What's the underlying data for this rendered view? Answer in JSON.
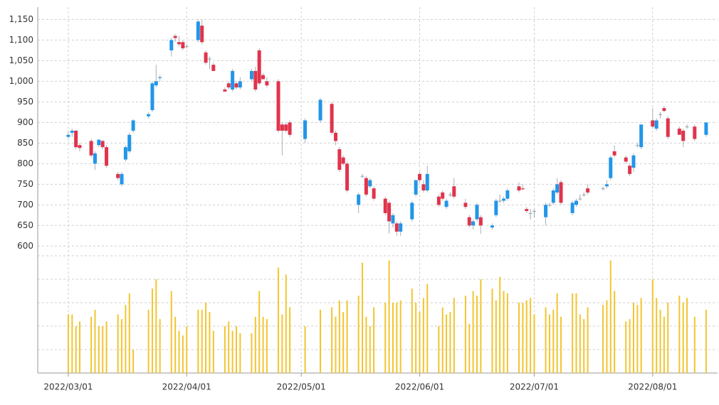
{
  "chart_data": {
    "type": "candlestick",
    "colors": {
      "up": "#2196e8",
      "down": "#e0344c",
      "flat": "#9aa3ad",
      "volume": "#f2c530"
    },
    "grid": true,
    "x": [
      "2022/03/01",
      "2022/03/02",
      "2022/03/03",
      "2022/03/04",
      "2022/03/07",
      "2022/03/08",
      "2022/03/09",
      "2022/03/10",
      "2022/03/11",
      "2022/03/14",
      "2022/03/15",
      "2022/03/16",
      "2022/03/17",
      "2022/03/18",
      "2022/03/22",
      "2022/03/23",
      "2022/03/24",
      "2022/03/25",
      "2022/03/28",
      "2022/03/29",
      "2022/03/30",
      "2022/03/31",
      "2022/04/01",
      "2022/04/04",
      "2022/04/05",
      "2022/04/06",
      "2022/04/07",
      "2022/04/08",
      "2022/04/11",
      "2022/04/12",
      "2022/04/13",
      "2022/04/14",
      "2022/04/15",
      "2022/04/18",
      "2022/04/19",
      "2022/04/20",
      "2022/04/21",
      "2022/04/22",
      "2022/04/25",
      "2022/04/26",
      "2022/04/27",
      "2022/04/28",
      "2022/05/02",
      "2022/05/06",
      "2022/05/09",
      "2022/05/10",
      "2022/05/11",
      "2022/05/12",
      "2022/05/13",
      "2022/05/16",
      "2022/05/17",
      "2022/05/18",
      "2022/05/19",
      "2022/05/20",
      "2022/05/23",
      "2022/05/24",
      "2022/05/25",
      "2022/05/26",
      "2022/05/27",
      "2022/05/30",
      "2022/05/31",
      "2022/06/01",
      "2022/06/02",
      "2022/06/03",
      "2022/06/06",
      "2022/06/07",
      "2022/06/08",
      "2022/06/09",
      "2022/06/10",
      "2022/06/13",
      "2022/06/14",
      "2022/06/15",
      "2022/06/16",
      "2022/06/17",
      "2022/06/20",
      "2022/06/21",
      "2022/06/22",
      "2022/06/23",
      "2022/06/24",
      "2022/06/27",
      "2022/06/28",
      "2022/06/29",
      "2022/06/30",
      "2022/07/01",
      "2022/07/04",
      "2022/07/05",
      "2022/07/06",
      "2022/07/07",
      "2022/07/08",
      "2022/07/11",
      "2022/07/12",
      "2022/07/13",
      "2022/07/14",
      "2022/07/15",
      "2022/07/19",
      "2022/07/20",
      "2022/07/21",
      "2022/07/22",
      "2022/07/25",
      "2022/07/26",
      "2022/07/27",
      "2022/07/28",
      "2022/07/29",
      "2022/08/01",
      "2022/08/02",
      "2022/08/03",
      "2022/08/04",
      "2022/08/05",
      "2022/08/08",
      "2022/08/09",
      "2022/08/10",
      "2022/08/12",
      "2022/08/15"
    ],
    "open": [
      865,
      875,
      880,
      845,
      855,
      800,
      845,
      855,
      840,
      775,
      750,
      810,
      830,
      880,
      915,
      930,
      990,
      1008,
      1075,
      1110,
      1095,
      1095,
      1085,
      1100,
      1135,
      1070,
      1055,
      1040,
      980,
      995,
      980,
      995,
      985,
      1005,
      1025,
      1075,
      1015,
      1000,
      1000,
      895,
      895,
      900,
      860,
      905,
      945,
      875,
      835,
      815,
      800,
      700,
      770,
      765,
      745,
      740,
      715,
      705,
      655,
      655,
      635,
      665,
      725,
      775,
      750,
      735,
      720,
      730,
      695,
      725,
      745,
      705,
      670,
      650,
      665,
      670,
      645,
      675,
      710,
      710,
      715,
      745,
      740,
      690,
      680,
      685,
      670,
      700,
      705,
      730,
      755,
      680,
      700,
      715,
      725,
      740,
      740,
      745,
      765,
      830,
      815,
      795,
      790,
      845,
      840,
      905,
      885,
      920,
      935,
      910,
      885,
      880,
      890,
      890,
      870
    ],
    "high": [
      880,
      885,
      882,
      850,
      860,
      830,
      860,
      858,
      845,
      780,
      780,
      845,
      875,
      908,
      925,
      1000,
      1040,
      1015,
      1105,
      1115,
      1110,
      1100,
      1090,
      1150,
      1150,
      1075,
      1060,
      1045,
      985,
      1000,
      1030,
      1000,
      1010,
      1030,
      1035,
      1080,
      1020,
      1010,
      1005,
      900,
      900,
      905,
      910,
      960,
      950,
      880,
      840,
      820,
      805,
      730,
      775,
      770,
      765,
      745,
      720,
      710,
      680,
      660,
      660,
      710,
      760,
      780,
      760,
      795,
      725,
      735,
      715,
      730,
      765,
      715,
      675,
      665,
      705,
      675,
      655,
      715,
      725,
      720,
      740,
      755,
      750,
      695,
      690,
      690,
      705,
      705,
      740,
      765,
      760,
      710,
      715,
      725,
      730,
      750,
      745,
      760,
      820,
      845,
      820,
      800,
      825,
      850,
      895,
      935,
      910,
      925,
      940,
      915,
      890,
      885,
      895,
      895,
      900
    ],
    "low": [
      860,
      865,
      835,
      830,
      815,
      785,
      840,
      835,
      790,
      760,
      745,
      805,
      825,
      875,
      910,
      925,
      985,
      1000,
      1060,
      1095,
      1085,
      1075,
      1080,
      1095,
      1090,
      1040,
      1030,
      1025,
      975,
      980,
      975,
      980,
      980,
      1000,
      975,
      990,
      1005,
      985,
      875,
      820,
      875,
      865,
      850,
      900,
      870,
      845,
      780,
      795,
      730,
      680,
      765,
      720,
      740,
      710,
      675,
      630,
      645,
      625,
      625,
      660,
      720,
      755,
      730,
      730,
      695,
      710,
      690,
      720,
      715,
      690,
      645,
      640,
      660,
      630,
      640,
      670,
      705,
      705,
      710,
      730,
      735,
      680,
      665,
      670,
      650,
      695,
      700,
      725,
      700,
      675,
      695,
      710,
      720,
      725,
      735,
      740,
      760,
      815,
      800,
      770,
      780,
      840,
      835,
      885,
      880,
      910,
      925,
      860,
      870,
      840,
      885,
      855,
      865
    ],
    "close": [
      870,
      880,
      840,
      838,
      820,
      825,
      858,
      840,
      795,
      765,
      775,
      840,
      870,
      905,
      920,
      995,
      1000,
      1010,
      1100,
      1105,
      1090,
      1080,
      1085,
      1145,
      1095,
      1045,
      1055,
      1025,
      975,
      985,
      1025,
      985,
      1000,
      1025,
      980,
      995,
      1005,
      990,
      880,
      880,
      880,
      870,
      905,
      955,
      875,
      855,
      785,
      800,
      735,
      725,
      770,
      725,
      760,
      715,
      680,
      660,
      675,
      635,
      655,
      705,
      760,
      760,
      735,
      775,
      700,
      715,
      710,
      725,
      720,
      695,
      650,
      660,
      700,
      650,
      650,
      710,
      710,
      715,
      735,
      735,
      738,
      685,
      680,
      685,
      700,
      700,
      735,
      750,
      705,
      705,
      710,
      715,
      725,
      730,
      740,
      750,
      815,
      820,
      805,
      775,
      820,
      845,
      895,
      890,
      905,
      920,
      928,
      865,
      870,
      855,
      890,
      860,
      900
    ],
    "volume": [
      2.5,
      2.5,
      2.0,
      2.2,
      2.4,
      2.7,
      2.0,
      2.0,
      2.2,
      2.5,
      2.3,
      2.9,
      3.4,
      1.0,
      2.7,
      3.6,
      4.0,
      2.3,
      3.5,
      2.4,
      1.8,
      1.6,
      2.0,
      2.7,
      2.7,
      3.0,
      2.6,
      1.8,
      2.0,
      2.2,
      1.8,
      2.0,
      1.7,
      1.7,
      2.4,
      3.5,
      2.4,
      2.3,
      4.5,
      2.5,
      4.2,
      2.8,
      2.0,
      2.7,
      2.8,
      2.4,
      3.1,
      2.6,
      3.1,
      3.3,
      4.7,
      2.4,
      2.0,
      2.8,
      3.0,
      4.8,
      3.0,
      3.0,
      3.1,
      3.6,
      3.0,
      2.6,
      3.2,
      3.8,
      2.0,
      2.8,
      2.5,
      2.6,
      3.2,
      3.3,
      2.1,
      3.5,
      3.3,
      4.0,
      3.6,
      3.1,
      4.1,
      3.5,
      3.4,
      3.0,
      3.0,
      3.1,
      3.2,
      2.5,
      2.8,
      2.5,
      2.7,
      3.4,
      2.4,
      3.4,
      3.4,
      2.5,
      2.3,
      2.8,
      2.9,
      3.1,
      4.8,
      3.5,
      2.2,
      2.3,
      3.0,
      2.9,
      3.2,
      4.0,
      3.2,
      2.7,
      2.4,
      3.0,
      3.3,
      3.0,
      3.2,
      2.4,
      2.7
    ],
    "xlim": [
      "2022/02/21",
      "2022/08/18"
    ],
    "xticks": [
      "2022/03/01",
      "2022/04/01",
      "2022/05/01",
      "2022/06/01",
      "2022/07/01",
      "2022/08/01"
    ],
    "ylim": [
      585,
      1180
    ],
    "yticks": [
      600,
      650,
      700,
      750,
      800,
      850,
      900,
      950,
      {
        "value": 1000,
        "label": "1,000"
      },
      {
        "value": 1050,
        "label": "1,050"
      },
      {
        "value": 1100,
        "label": "1,100"
      },
      {
        "value": 1150,
        "label": "1,150"
      }
    ],
    "volume_ylim": [
      0,
      5
    ],
    "volume_yticks": [
      1,
      2,
      3,
      4,
      5
    ]
  }
}
